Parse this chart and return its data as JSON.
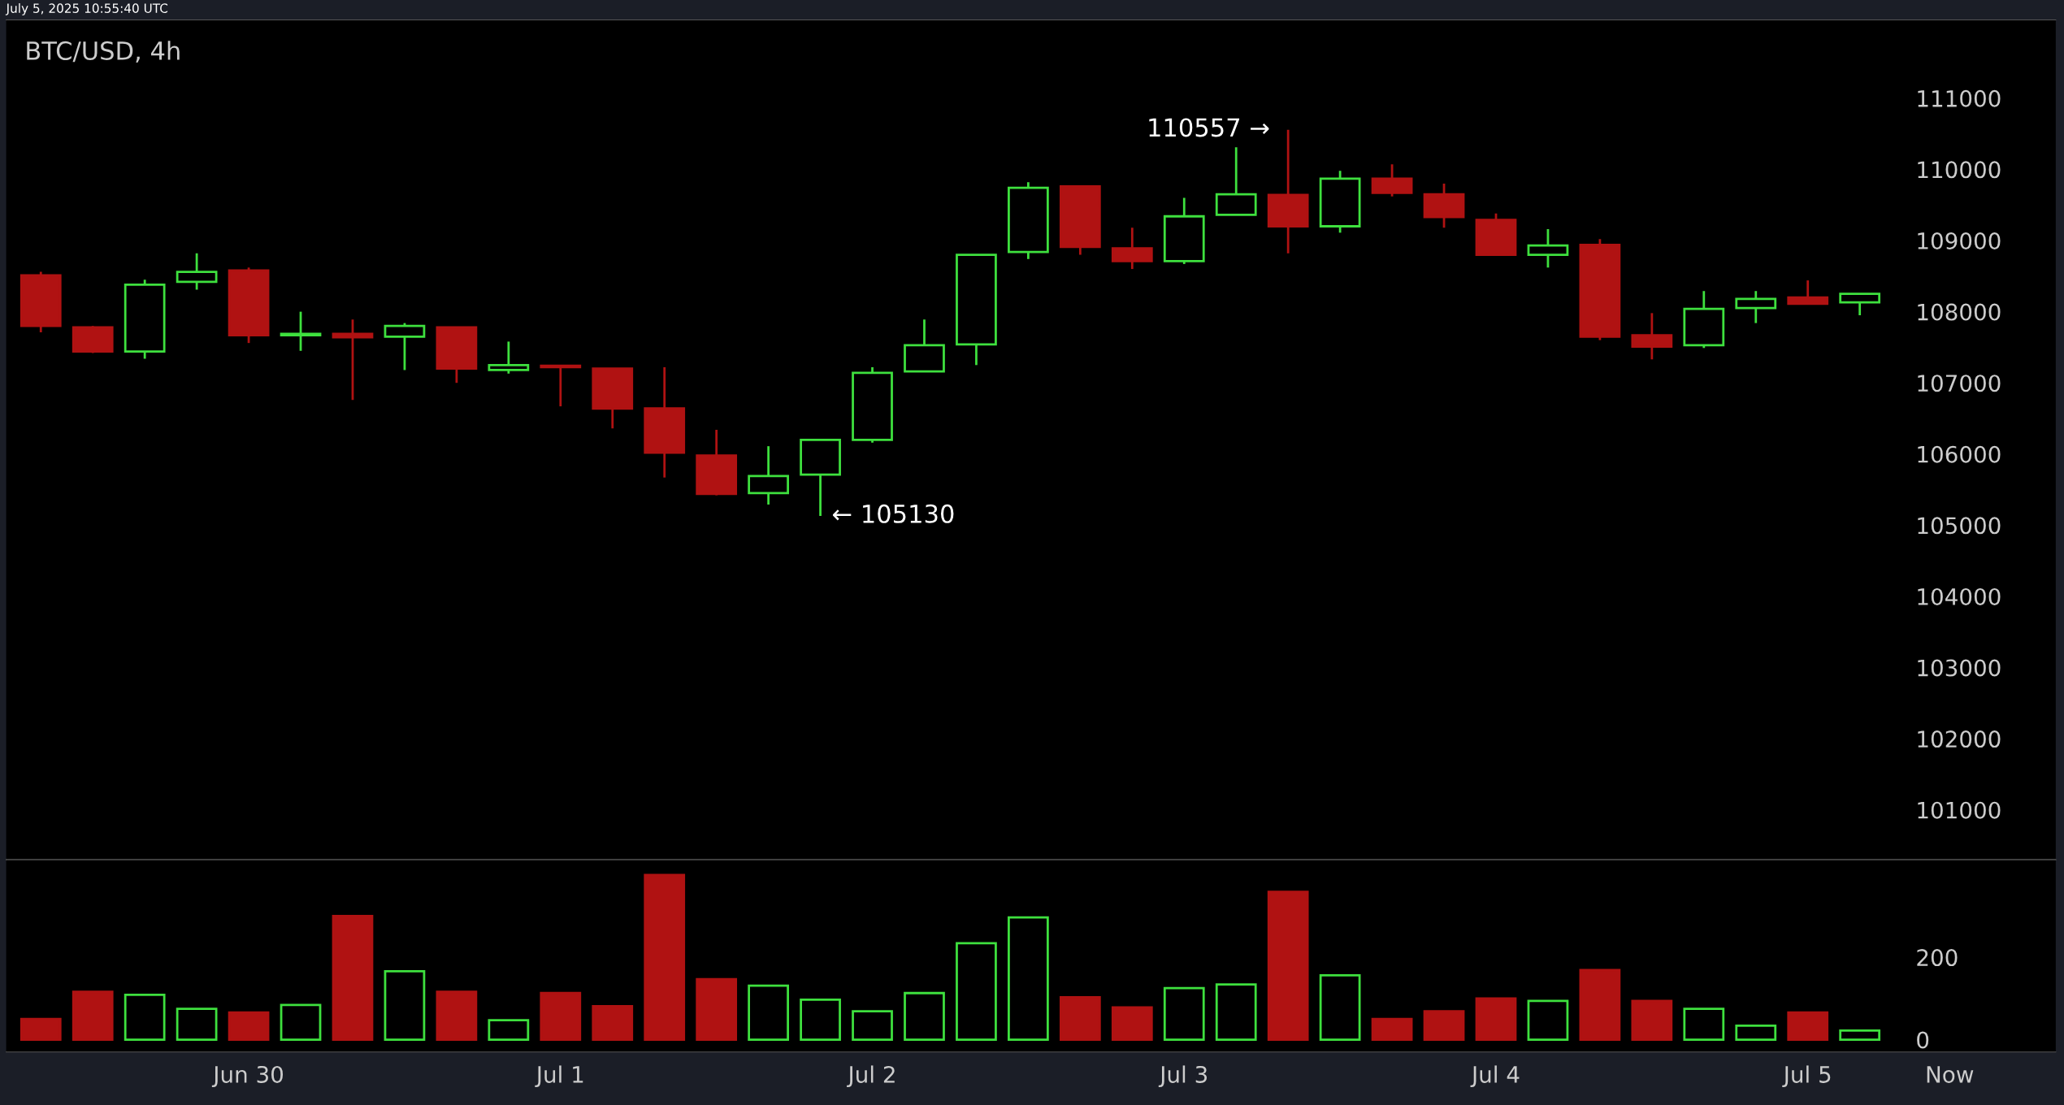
{
  "chart_data": [
    {
      "type": "candlestick",
      "title": "BTC/USD, 4h",
      "annotations": [
        "July 5, 2025 10:55:40 UTC",
        {
          "text": "110557 →",
          "x": "2025-07-03T08:00",
          "y": 110557
        },
        {
          "text": "← 105130",
          "x": "2025-07-01T20:00",
          "y": 105130
        }
      ],
      "x": [
        "2025-06-29T08:00",
        "2025-06-29T12:00",
        "2025-06-29T16:00",
        "2025-06-29T20:00",
        "2025-06-30T00:00",
        "2025-06-30T04:00",
        "2025-06-30T08:00",
        "2025-06-30T12:00",
        "2025-06-30T16:00",
        "2025-06-30T20:00",
        "2025-07-01T00:00",
        "2025-07-01T04:00",
        "2025-07-01T08:00",
        "2025-07-01T12:00",
        "2025-07-01T16:00",
        "2025-07-01T20:00",
        "2025-07-02T00:00",
        "2025-07-02T04:00",
        "2025-07-02T08:00",
        "2025-07-02T12:00",
        "2025-07-02T16:00",
        "2025-07-02T20:00",
        "2025-07-03T00:00",
        "2025-07-03T04:00",
        "2025-07-03T08:00",
        "2025-07-03T12:00",
        "2025-07-03T16:00",
        "2025-07-03T20:00",
        "2025-07-04T00:00",
        "2025-07-04T04:00",
        "2025-07-04T08:00",
        "2025-07-04T12:00",
        "2025-07-04T16:00",
        "2025-07-04T20:00",
        "2025-07-05T00:00",
        "2025-07-05T04:00"
      ],
      "ohlc": [
        [
          108510,
          108560,
          107710,
          107800
        ],
        [
          107780,
          107800,
          107420,
          107440
        ],
        [
          107440,
          108450,
          107340,
          108380
        ],
        [
          108420,
          108820,
          108310,
          108560
        ],
        [
          108580,
          108620,
          107560,
          107670
        ],
        [
          107670,
          108000,
          107450,
          107690
        ],
        [
          107690,
          107890,
          106760,
          107640
        ],
        [
          107650,
          107840,
          107180,
          107800
        ],
        [
          107780,
          107780,
          107000,
          107200
        ],
        [
          107180,
          107580,
          107130,
          107250
        ],
        [
          107240,
          107240,
          106670,
          107220
        ],
        [
          107200,
          107200,
          106360,
          106640
        ],
        [
          106640,
          107220,
          105670,
          106020
        ],
        [
          105980,
          106340,
          105420,
          105440
        ],
        [
          105450,
          106110,
          105290,
          105690
        ],
        [
          105710,
          106200,
          105130,
          106200
        ],
        [
          106200,
          107220,
          106160,
          107140
        ],
        [
          107160,
          107890,
          107160,
          107530
        ],
        [
          107540,
          108800,
          107250,
          108800
        ],
        [
          108840,
          109820,
          108740,
          109740
        ],
        [
          109760,
          109760,
          108800,
          108910
        ],
        [
          108890,
          109180,
          108600,
          108710
        ],
        [
          108710,
          109600,
          108670,
          109340
        ],
        [
          109360,
          110310,
          109360,
          109650
        ],
        [
          109640,
          110557,
          108820,
          109200
        ],
        [
          109200,
          109980,
          109110,
          109870
        ],
        [
          109870,
          110070,
          109620,
          109670
        ],
        [
          109650,
          109800,
          109180,
          109330
        ],
        [
          109290,
          109380,
          108800,
          108800
        ],
        [
          108800,
          109160,
          108620,
          108930
        ],
        [
          108940,
          109020,
          107600,
          107650
        ],
        [
          107670,
          107980,
          107330,
          107510
        ],
        [
          107530,
          108290,
          107490,
          108040
        ],
        [
          108050,
          108290,
          107840,
          108180
        ],
        [
          108200,
          108440,
          108110,
          108110
        ],
        [
          108130,
          108250,
          107950,
          108250
        ]
      ],
      "colors": [
        "#b01212",
        "#b01212",
        "#3ee03e",
        "#3ee03e",
        "#b01212",
        "#3ee03e",
        "#b01212",
        "#3ee03e",
        "#b01212",
        "#3ee03e",
        "#b01212",
        "#b01212",
        "#b01212",
        "#b01212",
        "#3ee03e",
        "#3ee03e",
        "#3ee03e",
        "#3ee03e",
        "#3ee03e",
        "#3ee03e",
        "#b01212",
        "#b01212",
        "#3ee03e",
        "#3ee03e",
        "#b01212",
        "#3ee03e",
        "#b01212",
        "#b01212",
        "#b01212",
        "#3ee03e",
        "#b01212",
        "#b01212",
        "#3ee03e",
        "#3ee03e",
        "#b01212",
        "#3ee03e"
      ],
      "xlim": [
        "2025-06-29T05:20",
        "2025-07-05T19:05"
      ],
      "ylim": [
        100300,
        112100
      ],
      "yticks": [
        101000,
        102000,
        103000,
        104000,
        105000,
        106000,
        107000,
        108000,
        109000,
        110000,
        111000
      ],
      "tick_labels": "y",
      "grid": false,
      "legend": false
    },
    {
      "type": "bar",
      "x": [
        "2025-06-29T08:00",
        "2025-06-29T12:00",
        "2025-06-29T16:00",
        "2025-06-29T20:00",
        "2025-06-30T00:00",
        "2025-06-30T04:00",
        "2025-06-30T08:00",
        "2025-06-30T12:00",
        "2025-06-30T16:00",
        "2025-06-30T20:00",
        "2025-07-01T00:00",
        "2025-07-01T04:00",
        "2025-07-01T08:00",
        "2025-07-01T12:00",
        "2025-07-01T16:00",
        "2025-07-01T20:00",
        "2025-07-02T00:00",
        "2025-07-02T04:00",
        "2025-07-02T08:00",
        "2025-07-02T12:00",
        "2025-07-02T16:00",
        "2025-07-02T20:00",
        "2025-07-03T00:00",
        "2025-07-03T04:00",
        "2025-07-03T08:00",
        "2025-07-03T12:00",
        "2025-07-03T16:00",
        "2025-07-03T20:00",
        "2025-07-04T00:00",
        "2025-07-04T04:00",
        "2025-07-04T08:00",
        "2025-07-04T12:00",
        "2025-07-04T16:00",
        "2025-07-04T20:00",
        "2025-07-05T00:00",
        "2025-07-05T04:00"
      ],
      "values": [
        50,
        116,
        109,
        75,
        66,
        84,
        300,
        166,
        116,
        47,
        113,
        81,
        400,
        147,
        131,
        97,
        69,
        113,
        234,
        297,
        103,
        78,
        125,
        134,
        359,
        156,
        50,
        69,
        100,
        94,
        169,
        94,
        75,
        34,
        66,
        22
      ],
      "colors": [
        "#b01212",
        "#b01212",
        "#3ee03e",
        "#3ee03e",
        "#b01212",
        "#3ee03e",
        "#b01212",
        "#3ee03e",
        "#b01212",
        "#3ee03e",
        "#b01212",
        "#b01212",
        "#b01212",
        "#b01212",
        "#3ee03e",
        "#3ee03e",
        "#3ee03e",
        "#3ee03e",
        "#3ee03e",
        "#3ee03e",
        "#b01212",
        "#b01212",
        "#3ee03e",
        "#3ee03e",
        "#b01212",
        "#3ee03e",
        "#b01212",
        "#b01212",
        "#b01212",
        "#3ee03e",
        "#b01212",
        "#b01212",
        "#3ee03e",
        "#3ee03e",
        "#b01212",
        "#3ee03e"
      ],
      "xlim": [
        "2025-06-29T05:20",
        "2025-07-05T19:05"
      ],
      "xticks": [
        {
          "value": "2025-06-30",
          "label": "Jun 30"
        },
        {
          "value": "2025-07-01",
          "label": "Jul 1"
        },
        {
          "value": "2025-07-02",
          "label": "Jul 2"
        },
        {
          "value": "2025-07-03",
          "label": "Jul 3"
        },
        {
          "value": "2025-07-04",
          "label": "Jul 4"
        },
        {
          "value": "2025-07-05",
          "label": "Jul 5"
        },
        {
          "value": "2025-07-05T10:55",
          "label": "Now"
        }
      ],
      "ylim": [
        -30,
        437
      ],
      "yticks": [
        0,
        200
      ],
      "grid": false,
      "legend": false
    }
  ]
}
